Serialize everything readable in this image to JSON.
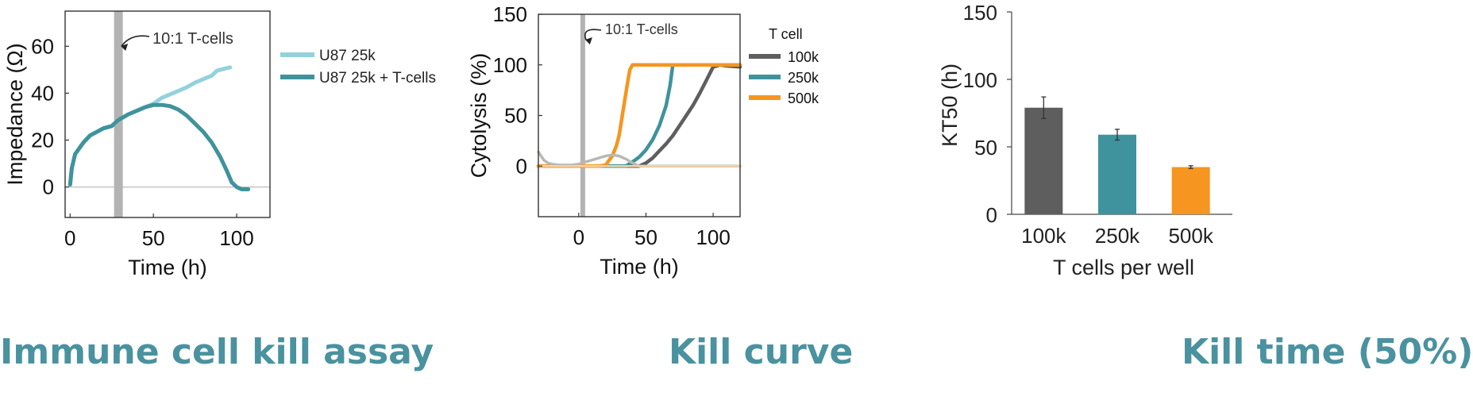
{
  "colors": {
    "teal": "#3f939c",
    "light_teal": "#93d1dc",
    "gray": "#5e5e5e",
    "orange": "#f6951f",
    "caption": "#4a929f",
    "marker": "#b3b3b3"
  },
  "captions": {
    "panel1": "Immune cell kill assay",
    "panel2": "Kill curve",
    "panel3": "Kill time (50%)"
  },
  "chart_data": [
    {
      "type": "line",
      "xlabel": "Time (h)",
      "ylabel": "Impedance (Ω)",
      "xlim": [
        -3,
        120
      ],
      "ylim": [
        -13,
        75
      ],
      "xticks": [
        0,
        50,
        100
      ],
      "yticks": [
        0,
        20,
        40,
        60
      ],
      "zero_line": true,
      "marker": {
        "x": 29,
        "label": "10:1 T-cells"
      },
      "legend_position": "right",
      "series": [
        {
          "name": "U87 25k",
          "color": "#93d1dc",
          "x": [
            0,
            1,
            3,
            5,
            8,
            12,
            16,
            20,
            25,
            28,
            30,
            35,
            40,
            45,
            50,
            55,
            60,
            65,
            70,
            75,
            80,
            85,
            88,
            90,
            93,
            96
          ],
          "y": [
            1,
            8,
            14,
            16,
            19,
            22,
            23.5,
            25,
            26,
            28,
            29,
            31,
            32.5,
            34,
            35.5,
            38,
            39.5,
            41,
            42.5,
            44.5,
            46,
            47.5,
            49.5,
            50,
            50.5,
            51
          ]
        },
        {
          "name": "U87 25k + T-cells",
          "color": "#3f939c",
          "x": [
            0,
            1,
            3,
            5,
            8,
            12,
            16,
            20,
            25,
            28,
            30,
            35,
            40,
            45,
            50,
            55,
            60,
            65,
            70,
            75,
            80,
            85,
            90,
            94,
            97,
            100,
            103,
            107
          ],
          "y": [
            1,
            8,
            14,
            16,
            19,
            22,
            23.5,
            25,
            26,
            28,
            29,
            31,
            32.5,
            34,
            35,
            35,
            34.5,
            33,
            30.5,
            27,
            23.5,
            19,
            13,
            7,
            2,
            0,
            -1,
            -1
          ]
        }
      ]
    },
    {
      "type": "line",
      "xlabel": "Time (h)",
      "ylabel": "Cytolysis (%)",
      "xlim": [
        -30,
        120
      ],
      "ylim": [
        -50,
        150
      ],
      "xticks": [
        0,
        50,
        100
      ],
      "yticks": [
        0,
        50,
        100,
        150
      ],
      "marker": {
        "x": 3,
        "label": "10:1 T-cells"
      },
      "legend_title": "T cell",
      "legend_position": "right",
      "series": [
        {
          "name": "100k",
          "color": "#5e5e5e",
          "x": [
            -30,
            0,
            20,
            30,
            45,
            50,
            55,
            60,
            65,
            70,
            75,
            80,
            85,
            90,
            95,
            100,
            105,
            110,
            120
          ],
          "y": [
            0,
            0,
            0,
            0,
            0,
            3,
            8,
            15,
            22,
            30,
            40,
            50,
            60,
            72,
            85,
            98,
            100,
            99,
            98
          ]
        },
        {
          "name": "250k",
          "color": "#3f939c",
          "x": [
            -30,
            0,
            20,
            35,
            40,
            45,
            50,
            55,
            60,
            65,
            68,
            70,
            75,
            80,
            120
          ],
          "y": [
            0,
            0,
            0,
            0,
            4,
            9,
            16,
            26,
            40,
            60,
            80,
            100,
            100,
            100,
            100
          ]
        },
        {
          "name": "500k",
          "color": "#f6951f",
          "x": [
            -30,
            0,
            15,
            20,
            25,
            28,
            30,
            33,
            36,
            38,
            40,
            45,
            60,
            80,
            120
          ],
          "y": [
            0,
            0,
            0,
            1,
            10,
            20,
            30,
            55,
            80,
            95,
            100,
            100,
            100,
            100,
            100
          ]
        },
        {
          "name": "",
          "color": "#b7b9b3",
          "x": [
            -30,
            -28,
            -26,
            -23,
            -20,
            -15,
            -10,
            -5,
            0,
            5,
            10,
            15,
            20,
            25,
            30,
            35,
            40,
            45,
            50,
            120
          ],
          "y": [
            14,
            10,
            6,
            3,
            2,
            1,
            1,
            1,
            2,
            4,
            6,
            8,
            10,
            11,
            10,
            7,
            3,
            0,
            0,
            0
          ]
        },
        {
          "name": "",
          "color": "#f5d3a5",
          "x": [
            -30,
            120
          ],
          "y": [
            0,
            0
          ]
        }
      ]
    },
    {
      "type": "bar",
      "xlabel": "T cells per well",
      "ylabel": "KT50 (h)",
      "ylim": [
        0,
        150
      ],
      "yticks": [
        0,
        50,
        100,
        150
      ],
      "categories": [
        "100k",
        "250k",
        "500k"
      ],
      "values": [
        79,
        59,
        35
      ],
      "errors": [
        8,
        4,
        1
      ],
      "colors": [
        "#5e5e5e",
        "#3f939c",
        "#f6951f"
      ]
    }
  ]
}
